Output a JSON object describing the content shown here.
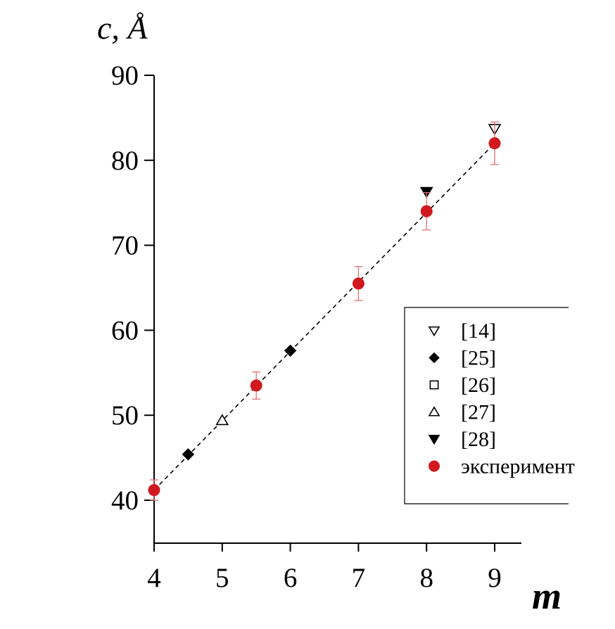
{
  "chart_data": {
    "type": "scatter",
    "title": "",
    "xlabel": "m",
    "ylabel": "c, Å",
    "xlim": [
      4,
      9.4
    ],
    "ylim": [
      35,
      90
    ],
    "x_ticks": [
      4,
      5,
      6,
      7,
      8,
      9
    ],
    "y_ticks": [
      40,
      50,
      60,
      70,
      80,
      90
    ],
    "grid": false,
    "legend_position": "right",
    "series": [
      {
        "name": "[14]",
        "marker": "triangle-down-open",
        "color": "#000000",
        "points": [
          {
            "x": 9,
            "y": 83.7
          }
        ]
      },
      {
        "name": "[25]",
        "marker": "diamond-filled",
        "color": "#000000",
        "points": [
          {
            "x": 4.5,
            "y": 45.4
          },
          {
            "x": 6,
            "y": 57.6
          }
        ]
      },
      {
        "name": "[26]",
        "marker": "square-open",
        "color": "#000000",
        "points": []
      },
      {
        "name": "[27]",
        "marker": "triangle-up-open",
        "color": "#000000",
        "points": [
          {
            "x": 5,
            "y": 49.4
          }
        ]
      },
      {
        "name": "[28]",
        "marker": "triangle-down-filled",
        "color": "#000000",
        "points": [
          {
            "x": 8,
            "y": 76.3
          }
        ]
      },
      {
        "name": "эксперимент",
        "marker": "circle-filled",
        "color": "#d0191e",
        "error_color": "#e07070",
        "points": [
          {
            "x": 4,
            "y": 41.2,
            "err": 1.2
          },
          {
            "x": 5.5,
            "y": 53.5,
            "err": 1.6
          },
          {
            "x": 7,
            "y": 65.5,
            "err": 2.0
          },
          {
            "x": 8,
            "y": 74.0,
            "err": 2.2
          },
          {
            "x": 9,
            "y": 82.0,
            "err": 2.5
          }
        ]
      }
    ],
    "fit_line": {
      "style": "dashed",
      "color": "#000000",
      "points": [
        {
          "x": 4,
          "y": 41.2
        },
        {
          "x": 9,
          "y": 82.0
        }
      ]
    }
  }
}
